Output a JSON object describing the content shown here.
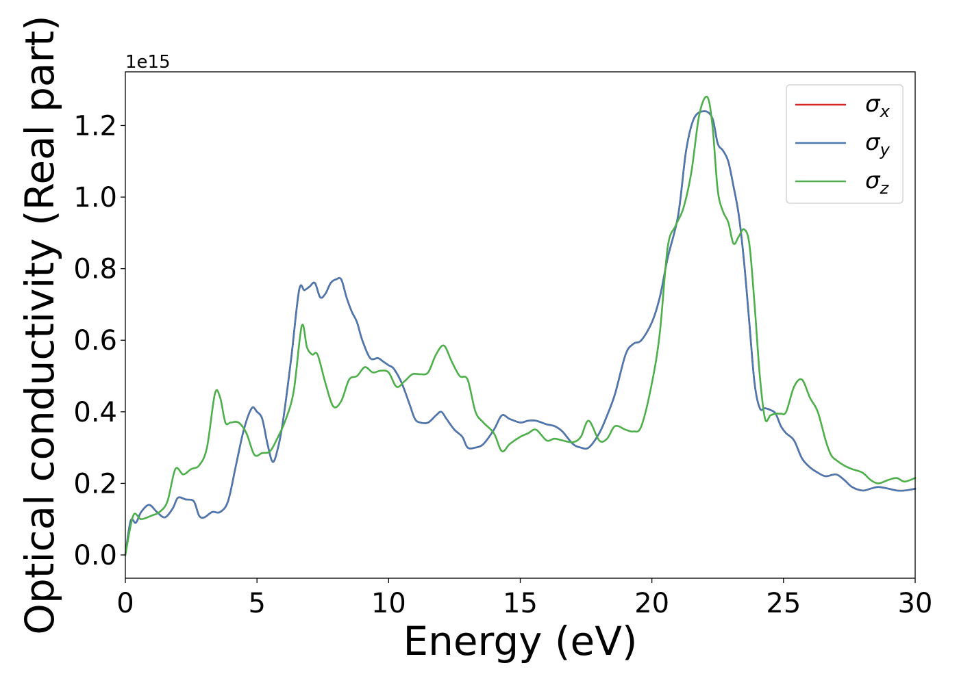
{
  "chart_data": {
    "type": "line",
    "title": "",
    "xlabel": "Energy (eV)",
    "ylabel": "Optical conductivity (Real part)",
    "y_offset_label": "1e15",
    "xlim": [
      0,
      30
    ],
    "ylim": [
      -0.065,
      1.35
    ],
    "x_ticks": [
      0,
      5,
      10,
      15,
      20,
      25,
      30
    ],
    "x_tick_labels": [
      "0",
      "5",
      "10",
      "15",
      "20",
      "25",
      "30"
    ],
    "y_ticks": [
      0.0,
      0.2,
      0.4,
      0.6,
      0.8,
      1.0,
      1.2
    ],
    "y_tick_labels": [
      "0.0",
      "0.2",
      "0.4",
      "0.6",
      "0.8",
      "1.0",
      "1.2"
    ],
    "grid": false,
    "legend_position": "top-right",
    "series": [
      {
        "name": "σx",
        "label_base": "σ",
        "label_sub": "x",
        "color": "#d62728",
        "x": [
          0,
          0.2,
          0.4,
          0.6,
          0.9,
          1.2,
          1.5,
          1.8,
          2.0,
          2.3,
          2.6,
          2.8,
          3.0,
          3.3,
          3.6,
          3.9,
          4.2,
          4.5,
          4.8,
          5.0,
          5.2,
          5.4,
          5.6,
          5.8,
          6.0,
          6.3,
          6.6,
          6.8,
          7.0,
          7.2,
          7.4,
          7.6,
          7.8,
          8.0,
          8.2,
          8.4,
          8.6,
          8.8,
          9.0,
          9.3,
          9.6,
          9.8,
          10.0,
          10.2,
          10.5,
          10.8,
          11.0,
          11.2,
          11.5,
          11.8,
          12.0,
          12.2,
          12.5,
          12.8,
          13.0,
          13.3,
          13.6,
          14.0,
          14.3,
          14.6,
          15.0,
          15.3,
          15.6,
          16.0,
          16.3,
          16.6,
          17.0,
          17.3,
          17.6,
          18.0,
          18.3,
          18.6,
          19.0,
          19.3,
          19.6,
          20.0,
          20.3,
          20.6,
          21.0,
          21.3,
          21.6,
          22.0,
          22.3,
          22.5,
          22.7,
          22.9,
          23.1,
          23.3,
          23.5,
          23.7,
          23.9,
          24.1,
          24.3,
          24.5,
          24.7,
          24.9,
          25.1,
          25.4,
          25.7,
          26.0,
          26.3,
          26.6,
          27.0,
          27.3,
          27.6,
          28.0,
          28.3,
          28.6,
          29.0,
          29.3,
          29.6,
          30.0
        ],
        "y": [
          0,
          0.095,
          0.09,
          0.12,
          0.14,
          0.12,
          0.105,
          0.13,
          0.16,
          0.155,
          0.15,
          0.11,
          0.105,
          0.12,
          0.12,
          0.15,
          0.25,
          0.35,
          0.41,
          0.4,
          0.38,
          0.31,
          0.26,
          0.3,
          0.38,
          0.55,
          0.74,
          0.74,
          0.75,
          0.76,
          0.72,
          0.73,
          0.76,
          0.77,
          0.77,
          0.72,
          0.68,
          0.65,
          0.6,
          0.55,
          0.55,
          0.54,
          0.53,
          0.52,
          0.48,
          0.42,
          0.38,
          0.37,
          0.37,
          0.39,
          0.4,
          0.38,
          0.35,
          0.33,
          0.3,
          0.3,
          0.31,
          0.35,
          0.39,
          0.38,
          0.37,
          0.375,
          0.375,
          0.365,
          0.36,
          0.345,
          0.31,
          0.3,
          0.3,
          0.34,
          0.39,
          0.45,
          0.56,
          0.59,
          0.6,
          0.65,
          0.72,
          0.83,
          0.95,
          1.13,
          1.22,
          1.24,
          1.22,
          1.15,
          1.13,
          1.1,
          1.03,
          0.95,
          0.82,
          0.65,
          0.48,
          0.41,
          0.41,
          0.405,
          0.395,
          0.36,
          0.34,
          0.32,
          0.27,
          0.245,
          0.23,
          0.22,
          0.225,
          0.21,
          0.19,
          0.18,
          0.185,
          0.19,
          0.185,
          0.18,
          0.18,
          0.185
        ]
      },
      {
        "name": "σy",
        "label_base": "σ",
        "label_sub": "y",
        "color": "#4a78b0",
        "x": [
          0,
          0.2,
          0.4,
          0.6,
          0.9,
          1.2,
          1.5,
          1.8,
          2.0,
          2.3,
          2.6,
          2.8,
          3.0,
          3.3,
          3.6,
          3.9,
          4.2,
          4.5,
          4.8,
          5.0,
          5.2,
          5.4,
          5.6,
          5.8,
          6.0,
          6.3,
          6.6,
          6.8,
          7.0,
          7.2,
          7.4,
          7.6,
          7.8,
          8.0,
          8.2,
          8.4,
          8.6,
          8.8,
          9.0,
          9.3,
          9.6,
          9.8,
          10.0,
          10.2,
          10.5,
          10.8,
          11.0,
          11.2,
          11.5,
          11.8,
          12.0,
          12.2,
          12.5,
          12.8,
          13.0,
          13.3,
          13.6,
          14.0,
          14.3,
          14.6,
          15.0,
          15.3,
          15.6,
          16.0,
          16.3,
          16.6,
          17.0,
          17.3,
          17.6,
          18.0,
          18.3,
          18.6,
          19.0,
          19.3,
          19.6,
          20.0,
          20.3,
          20.6,
          21.0,
          21.3,
          21.6,
          22.0,
          22.3,
          22.5,
          22.7,
          22.9,
          23.1,
          23.3,
          23.5,
          23.7,
          23.9,
          24.1,
          24.3,
          24.5,
          24.7,
          24.9,
          25.1,
          25.4,
          25.7,
          26.0,
          26.3,
          26.6,
          27.0,
          27.3,
          27.6,
          28.0,
          28.3,
          28.6,
          29.0,
          29.3,
          29.6,
          30.0
        ],
        "y": [
          0,
          0.095,
          0.09,
          0.12,
          0.14,
          0.12,
          0.105,
          0.13,
          0.16,
          0.155,
          0.15,
          0.11,
          0.105,
          0.12,
          0.12,
          0.15,
          0.25,
          0.35,
          0.41,
          0.4,
          0.38,
          0.31,
          0.26,
          0.3,
          0.38,
          0.55,
          0.74,
          0.74,
          0.75,
          0.76,
          0.72,
          0.73,
          0.76,
          0.77,
          0.77,
          0.72,
          0.68,
          0.65,
          0.6,
          0.55,
          0.55,
          0.54,
          0.53,
          0.52,
          0.48,
          0.42,
          0.38,
          0.37,
          0.37,
          0.39,
          0.4,
          0.38,
          0.35,
          0.33,
          0.3,
          0.3,
          0.31,
          0.35,
          0.39,
          0.38,
          0.37,
          0.375,
          0.375,
          0.365,
          0.36,
          0.345,
          0.31,
          0.3,
          0.3,
          0.34,
          0.39,
          0.45,
          0.56,
          0.59,
          0.6,
          0.65,
          0.72,
          0.83,
          0.95,
          1.13,
          1.22,
          1.24,
          1.22,
          1.15,
          1.13,
          1.1,
          1.03,
          0.95,
          0.82,
          0.65,
          0.48,
          0.41,
          0.41,
          0.405,
          0.395,
          0.36,
          0.34,
          0.32,
          0.27,
          0.245,
          0.23,
          0.22,
          0.225,
          0.21,
          0.19,
          0.18,
          0.185,
          0.19,
          0.185,
          0.18,
          0.18,
          0.185
        ]
      },
      {
        "name": "σz",
        "label_base": "σ",
        "label_sub": "z",
        "color": "#4daf4a",
        "x": [
          0,
          0.3,
          0.6,
          1.0,
          1.3,
          1.6,
          1.9,
          2.2,
          2.5,
          2.8,
          3.1,
          3.4,
          3.6,
          3.8,
          4.0,
          4.3,
          4.6,
          4.9,
          5.2,
          5.5,
          5.8,
          6.1,
          6.4,
          6.7,
          6.9,
          7.1,
          7.3,
          7.6,
          7.9,
          8.2,
          8.5,
          8.8,
          9.1,
          9.4,
          9.7,
          10.0,
          10.3,
          10.6,
          10.9,
          11.2,
          11.5,
          11.8,
          12.1,
          12.4,
          12.7,
          13.0,
          13.3,
          13.6,
          14.0,
          14.3,
          14.6,
          15.0,
          15.3,
          15.6,
          16.0,
          16.3,
          16.6,
          17.0,
          17.3,
          17.6,
          18.0,
          18.3,
          18.6,
          19.0,
          19.3,
          19.6,
          20.0,
          20.3,
          20.6,
          20.9,
          21.2,
          21.5,
          21.8,
          22.1,
          22.3,
          22.5,
          22.7,
          22.9,
          23.1,
          23.3,
          23.5,
          23.7,
          23.9,
          24.1,
          24.3,
          24.5,
          24.7,
          24.9,
          25.1,
          25.4,
          25.7,
          26.0,
          26.3,
          26.6,
          26.8,
          27.0,
          27.3,
          27.6,
          28.0,
          28.3,
          28.6,
          29.0,
          29.3,
          29.6,
          30.0
        ],
        "y": [
          0,
          0.11,
          0.1,
          0.11,
          0.12,
          0.15,
          0.24,
          0.225,
          0.24,
          0.25,
          0.3,
          0.45,
          0.44,
          0.37,
          0.37,
          0.37,
          0.34,
          0.28,
          0.285,
          0.29,
          0.33,
          0.38,
          0.46,
          0.64,
          0.58,
          0.56,
          0.56,
          0.48,
          0.415,
          0.43,
          0.49,
          0.5,
          0.525,
          0.51,
          0.515,
          0.51,
          0.47,
          0.485,
          0.505,
          0.505,
          0.51,
          0.56,
          0.585,
          0.54,
          0.5,
          0.49,
          0.4,
          0.37,
          0.34,
          0.29,
          0.31,
          0.33,
          0.34,
          0.35,
          0.32,
          0.325,
          0.32,
          0.315,
          0.33,
          0.375,
          0.32,
          0.325,
          0.36,
          0.35,
          0.345,
          0.36,
          0.48,
          0.62,
          0.86,
          0.92,
          0.97,
          1.07,
          1.23,
          1.28,
          1.2,
          1.02,
          0.96,
          0.93,
          0.87,
          0.89,
          0.91,
          0.87,
          0.7,
          0.5,
          0.38,
          0.39,
          0.395,
          0.395,
          0.4,
          0.47,
          0.49,
          0.44,
          0.4,
          0.32,
          0.28,
          0.265,
          0.25,
          0.24,
          0.23,
          0.21,
          0.2,
          0.21,
          0.215,
          0.205,
          0.215
        ]
      }
    ]
  }
}
